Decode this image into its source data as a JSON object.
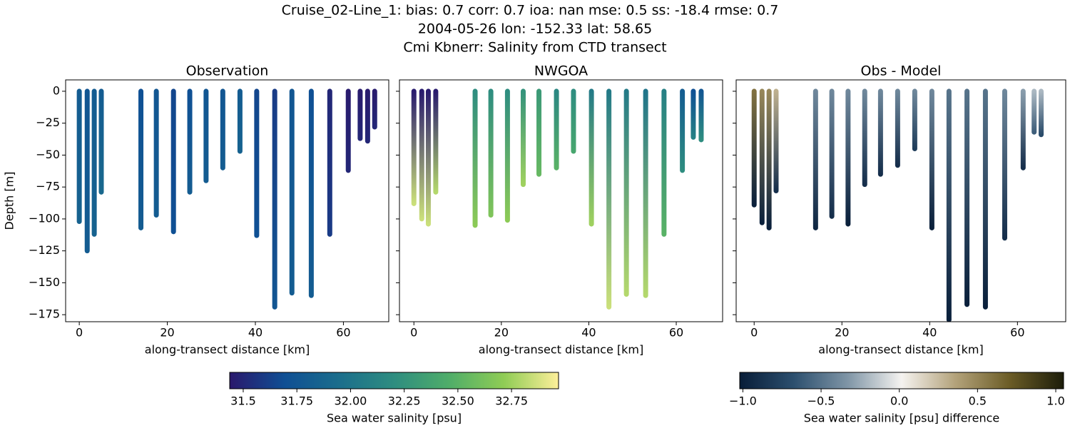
{
  "title": [
    "Cruise_02-Line_1: bias: 0.7  corr: 0.7  ioa: nan  mse: 0.5  ss: -18.4  rmse: 0.7",
    "2004-05-26 lon: -152.33 lat: 58.65",
    "Cmi Kbnerr: Salinity from CTD transect"
  ],
  "colormaps": {
    "haline": {
      "label": "Sea water salinity [psu]",
      "colors": [
        "#2a186c",
        "#0f4f94",
        "#1b6e8c",
        "#2e8d80",
        "#4fad69",
        "#8fcc55",
        "#fdef9a"
      ],
      "lim": [
        31.437,
        32.969
      ],
      "ticks": [
        31.5,
        31.75,
        {
          "value": 32,
          "label": "32.00"
        },
        32.25,
        {
          "value": 32.5,
          "label": "32.50"
        },
        32.75
      ]
    },
    "diff": {
      "label": "Sea water salinity [psu] difference",
      "colors": [
        "#081d38",
        "#2c4f6e",
        "#7f95a6",
        "#f5f3f0",
        "#b3a27a",
        "#6b5c26",
        "#1c1d0a"
      ],
      "lim": [
        -1.02,
        1.05
      ],
      "ticks": [
        {
          "value": -1,
          "label": "−1.0"
        },
        {
          "value": -0.5,
          "label": "−0.5"
        },
        {
          "value": 0,
          "label": "0.0"
        },
        {
          "value": 0.5,
          "label": "0.5"
        },
        {
          "value": 1,
          "label": "1.0"
        }
      ]
    }
  },
  "chart_data": [
    {
      "type": "profile",
      "title": "Observation",
      "xlabel": "along-transect distance [km]",
      "ylabel": "Depth [m]",
      "colormap": "haline",
      "xlim": [
        -3.1,
        70.3
      ],
      "xticks": [
        0,
        20,
        40,
        60
      ],
      "ylim": [
        -180.5,
        8.9
      ],
      "ytick_labels": true,
      "yticks": [
        0,
        {
          "value": -25,
          "label": "−25"
        },
        {
          "value": -50,
          "label": "−50"
        },
        {
          "value": -75,
          "label": "−75"
        },
        {
          "value": -100,
          "label": "−100"
        },
        {
          "value": -125,
          "label": "−125"
        },
        {
          "value": -150,
          "label": "−150"
        },
        {
          "value": -175,
          "label": "−175"
        }
      ],
      "x": [
        0,
        1.8,
        3.4,
        5.0,
        14.0,
        17.5,
        21.4,
        25.1,
        28.8,
        32.6,
        36.5,
        40.3,
        44.4,
        48.3,
        52.7,
        56.9,
        61.1,
        63.8,
        65.5,
        67.1
      ],
      "depth": [
        -102,
        -125,
        -112,
        -79,
        -107,
        -97,
        -110,
        -79,
        -70,
        -60,
        -47,
        -113,
        -169,
        -158,
        -160,
        -112,
        -62,
        -37,
        -39,
        -28
      ],
      "value_top": [
        31.8,
        31.75,
        31.8,
        31.8,
        31.7,
        31.75,
        31.65,
        31.7,
        31.75,
        31.75,
        31.8,
        31.65,
        31.6,
        31.75,
        31.7,
        31.5,
        31.45,
        31.45,
        31.45,
        31.45
      ],
      "value_bottom": [
        31.85,
        31.8,
        31.85,
        31.9,
        31.8,
        31.8,
        31.7,
        31.8,
        31.8,
        31.8,
        31.85,
        31.7,
        31.75,
        31.8,
        31.8,
        31.6,
        31.5,
        31.5,
        31.5,
        31.5
      ]
    },
    {
      "type": "profile",
      "title": "NWGOA",
      "xlabel": "along-transect distance [km]",
      "colormap": "haline",
      "xlim": [
        -3.3,
        70.6
      ],
      "xticks": [
        0,
        20,
        40,
        60
      ],
      "ylim": [
        -180.5,
        8.9
      ],
      "ytick_labels": false,
      "yticks": [
        0,
        -25,
        -50,
        -75,
        -100,
        -125,
        -150,
        -175
      ],
      "x": [
        0,
        1.8,
        3.3,
        5.0,
        14.0,
        17.6,
        21.4,
        25.0,
        28.6,
        32.6,
        36.5,
        40.6,
        44.6,
        48.6,
        53.0,
        57.2,
        61.4,
        63.9,
        65.7
      ],
      "depth": [
        -88,
        -100,
        -104,
        -79,
        -105,
        -97,
        -101,
        -73,
        -65,
        -60,
        -47,
        -104,
        -169,
        -159,
        -160,
        -112,
        -62,
        -36,
        -38
      ],
      "value_top": [
        31.45,
        31.45,
        31.45,
        31.45,
        32.2,
        32.2,
        32.2,
        32.25,
        32.3,
        32.15,
        32.2,
        32.05,
        32.05,
        32.05,
        32.0,
        32.1,
        31.8,
        31.7,
        31.75
      ],
      "value_bottom": [
        32.85,
        32.85,
        32.85,
        32.8,
        32.7,
        32.65,
        32.7,
        32.75,
        32.55,
        32.5,
        32.4,
        32.75,
        32.85,
        32.8,
        32.8,
        32.5,
        32.2,
        32.1,
        32.2
      ]
    },
    {
      "type": "profile",
      "title": "Obs - Model",
      "xlabel": "along-transect distance [km]",
      "colormap": "diff",
      "xlim": [
        -4.1,
        71.0
      ],
      "xticks": [
        0,
        20,
        40,
        60
      ],
      "ylim": [
        -180.5,
        8.9
      ],
      "ytick_labels": false,
      "yticks": [
        0,
        -25,
        -50,
        -75,
        -100,
        -125,
        -150,
        -175
      ],
      "x": [
        0,
        1.8,
        3.4,
        5.0,
        14.0,
        17.7,
        21.4,
        25.2,
        28.8,
        32.7,
        36.6,
        40.5,
        44.4,
        48.5,
        52.7,
        57.1,
        61.3,
        63.8,
        65.4
      ],
      "depth": [
        -89,
        -103,
        -107,
        -78,
        -107,
        -98,
        -104,
        -73,
        -65,
        -58,
        -45,
        -107,
        -179,
        -167,
        -169,
        -115,
        -60,
        -32,
        -34
      ],
      "value_top": [
        0.6,
        0.5,
        0.5,
        0.3,
        -0.4,
        -0.4,
        -0.4,
        -0.4,
        -0.4,
        -0.4,
        -0.4,
        -0.4,
        -0.5,
        -0.5,
        -0.5,
        -0.4,
        -0.3,
        -0.2,
        -0.2
      ],
      "value_bottom": [
        -1.0,
        -1.0,
        -1.0,
        -0.9,
        -0.95,
        -0.9,
        -1.0,
        -0.9,
        -0.9,
        -0.9,
        -0.8,
        -1.0,
        -1.0,
        -1.0,
        -1.0,
        -0.9,
        -0.9,
        -0.6,
        -0.7
      ]
    }
  ]
}
